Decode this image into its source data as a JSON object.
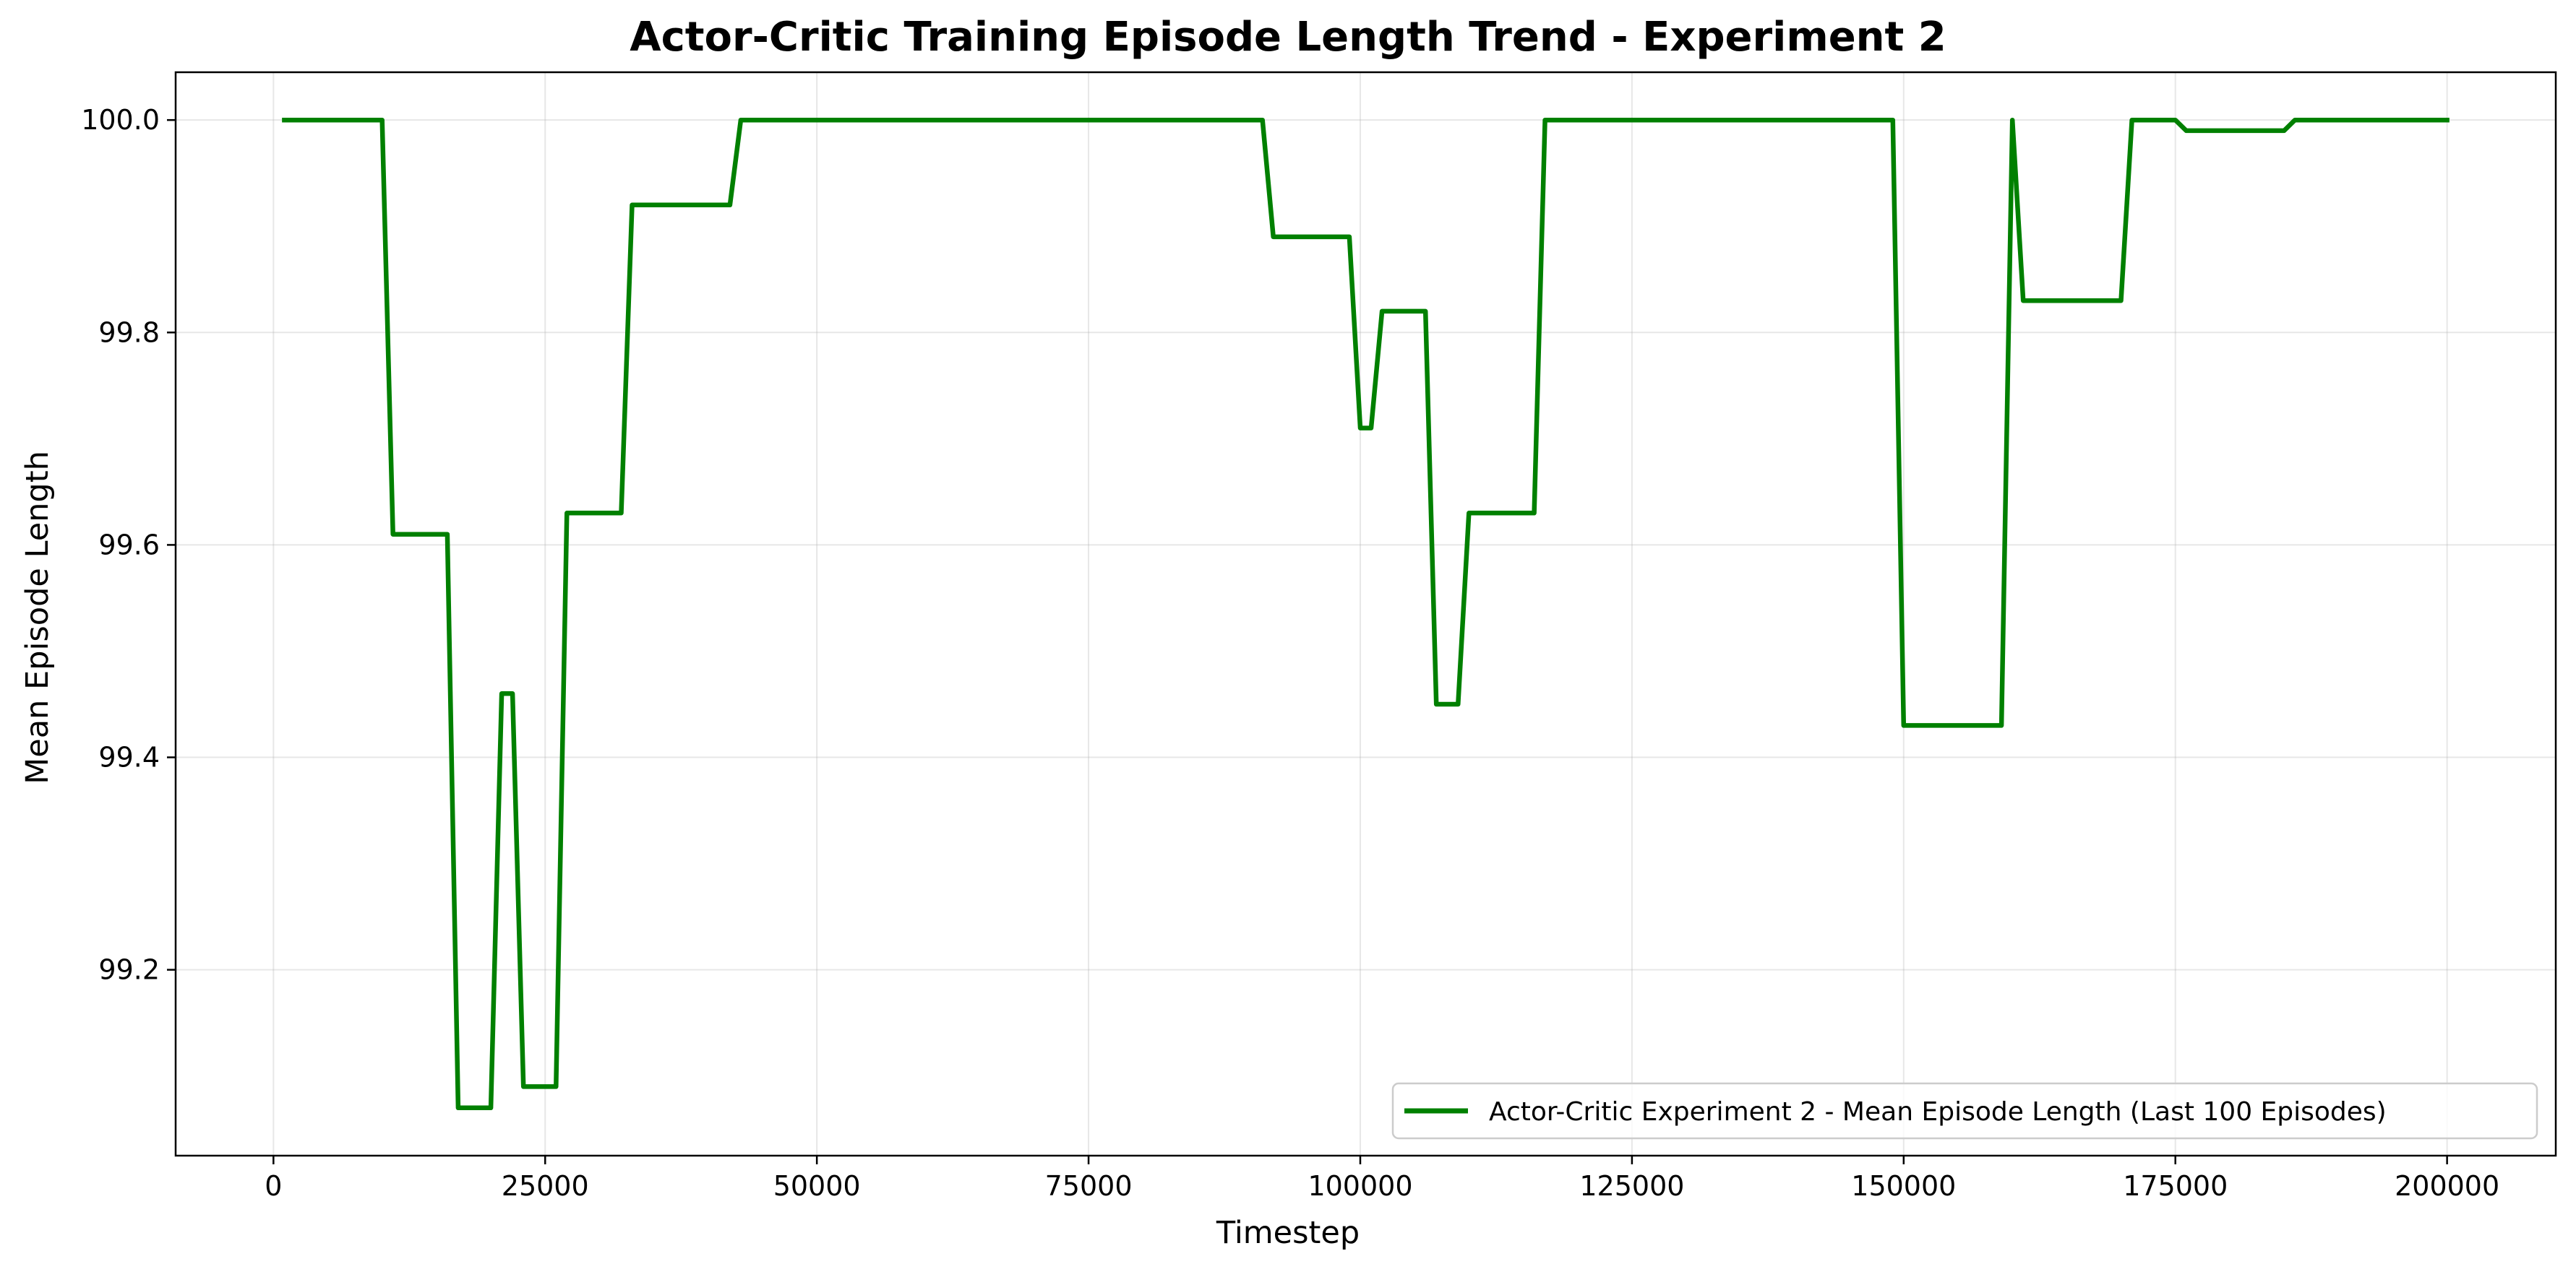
{
  "chart_data": {
    "type": "line",
    "title": "Actor-Critic Training Episode Length Trend - Experiment 2",
    "xlabel": "Timestep",
    "ylabel": "Mean Episode Length",
    "xlim": [
      -9000,
      210000
    ],
    "ylim": [
      99.025,
      100.045
    ],
    "x_ticks": [
      0,
      25000,
      50000,
      75000,
      100000,
      125000,
      150000,
      175000,
      200000
    ],
    "x_tick_labels": [
      "0",
      "25000",
      "50000",
      "75000",
      "100000",
      "125000",
      "150000",
      "175000",
      "200000"
    ],
    "y_ticks": [
      99.2,
      99.4,
      99.6,
      99.8,
      100.0
    ],
    "y_tick_labels": [
      "99.2",
      "99.4",
      "99.6",
      "99.8",
      "100.0"
    ],
    "grid": true,
    "legend_position": "lower-right",
    "series": [
      {
        "name": "Actor-Critic Experiment 2 - Mean Episode Length (Last 100 Episodes)",
        "color": "#008000",
        "x": [
          1000,
          10000,
          11000,
          16000,
          17000,
          20000,
          21000,
          22000,
          23000,
          26000,
          27000,
          32000,
          33000,
          42000,
          43000,
          91000,
          92000,
          99000,
          100000,
          101000,
          102000,
          106000,
          107000,
          109000,
          110000,
          116000,
          117000,
          149000,
          150000,
          159000,
          160000,
          161000,
          170000,
          171000,
          175000,
          176000,
          185000,
          186000,
          200000
        ],
        "y": [
          100.0,
          100.0,
          99.61,
          99.61,
          99.07,
          99.07,
          99.46,
          99.46,
          99.09,
          99.09,
          99.63,
          99.63,
          99.92,
          99.92,
          100.0,
          100.0,
          99.89,
          99.89,
          99.71,
          99.71,
          99.82,
          99.82,
          99.45,
          99.45,
          99.63,
          99.63,
          100.0,
          100.0,
          99.43,
          99.43,
          100.0,
          99.83,
          99.83,
          100.0,
          100.0,
          99.99,
          99.99,
          100.0,
          100.0
        ]
      }
    ]
  }
}
